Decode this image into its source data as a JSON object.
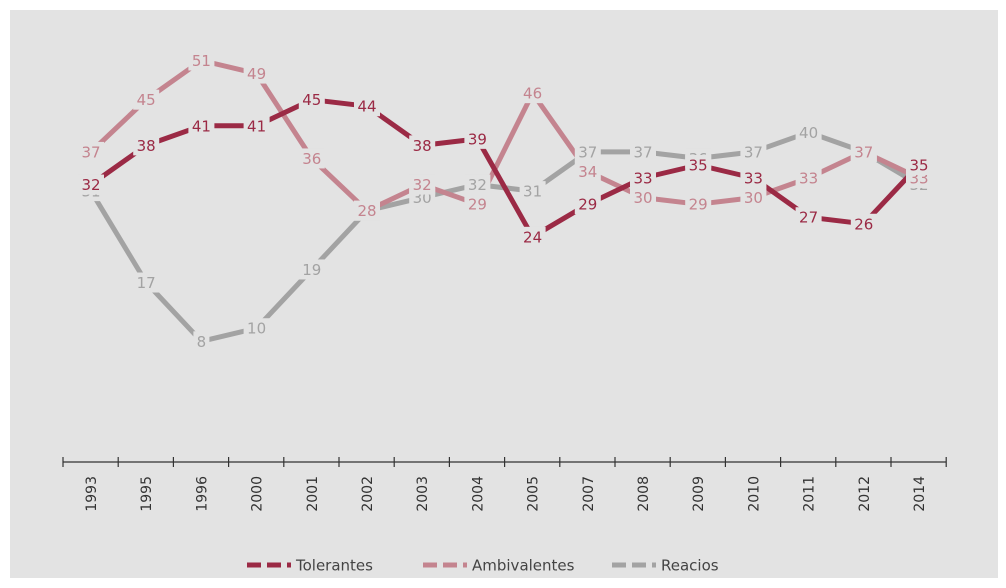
{
  "chart_data": {
    "type": "line",
    "title": "",
    "xlabel": "",
    "ylabel": "",
    "categories": [
      "1993",
      "1995",
      "1996",
      "2000",
      "2001",
      "2002",
      "2003",
      "2004",
      "2005",
      "2007",
      "2008",
      "2009",
      "2010",
      "2011",
      "2012",
      "2014"
    ],
    "ylim": [
      0,
      60
    ],
    "grid": false,
    "legend_position": "bottom",
    "series": [
      {
        "name": "Tolerantes",
        "color": "#9b2a45",
        "values": [
          32,
          38,
          41,
          41,
          45,
          44,
          38,
          39,
          24,
          29,
          33,
          35,
          33,
          27,
          26,
          35
        ]
      },
      {
        "name": "Ambivalentes",
        "color": "#c4848f",
        "values": [
          37,
          45,
          51,
          49,
          36,
          28,
          32,
          29,
          46,
          34,
          30,
          29,
          30,
          33,
          37,
          33
        ]
      },
      {
        "name": "Reacios",
        "color": "#a3a3a3",
        "values": [
          31,
          17,
          8,
          10,
          19,
          28,
          30,
          32,
          31,
          37,
          37,
          36,
          37,
          40,
          37,
          32
        ]
      }
    ]
  }
}
